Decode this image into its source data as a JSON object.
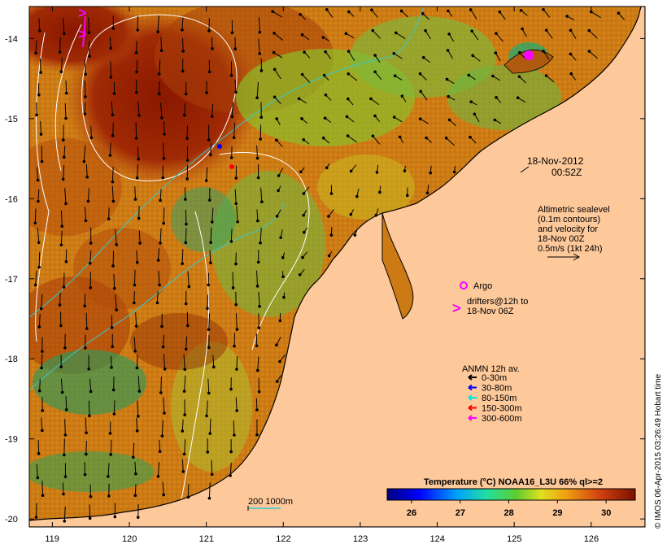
{
  "map": {
    "type": "sea-surface-temperature-map",
    "lat_ticks": [
      "-14",
      "-15",
      "-16",
      "-17",
      "-18",
      "-19",
      "-20"
    ],
    "lon_ticks": [
      "119",
      "120",
      "121",
      "122",
      "123",
      "124",
      "125",
      "126"
    ],
    "lat_range": [
      -20.1,
      -13.6
    ],
    "lon_range": [
      118.7,
      126.7
    ]
  },
  "annotations": {
    "timestamp_line1": "18-Nov-2012",
    "timestamp_line2": "00:52Z",
    "sealevel_lines": [
      "Altimetric sealevel",
      "(0.1m contours)",
      "and velocity for",
      "18-Nov 00Z",
      "0.5m/s (1kt 24h)"
    ],
    "argo_label": "Argo",
    "drifters_line1": "drifters@12h to",
    "drifters_line2": "18-Nov 06Z",
    "drifters_symbol": ">",
    "scale_label": "200  1000m"
  },
  "legend": {
    "title": "ANMN 12h av.",
    "items": [
      {
        "label": "0-30m",
        "color": "#000000"
      },
      {
        "label": "30-80m",
        "color": "#0000ff"
      },
      {
        "label": "80-150m",
        "color": "#00e5e5"
      },
      {
        "label": "150-300m",
        "color": "#ff0000"
      },
      {
        "label": "300-600m",
        "color": "#ff00ff"
      }
    ]
  },
  "colorbar": {
    "title": "Temperature (°C) NOAA16_L3U 66% ql>=2",
    "ticks": [
      "26",
      "27",
      "28",
      "29",
      "30"
    ],
    "range": [
      25.5,
      30.6
    ]
  },
  "credit": "© IMOS 06-Apr-2015 03:26:49 Hobart time",
  "colors": {
    "land": "#fdc89a",
    "warm": "#8b1a00",
    "mid": "#d28a16",
    "green": "#5db842",
    "contour_white": "#ffffff",
    "contour_cyan": "#38c8d0"
  }
}
